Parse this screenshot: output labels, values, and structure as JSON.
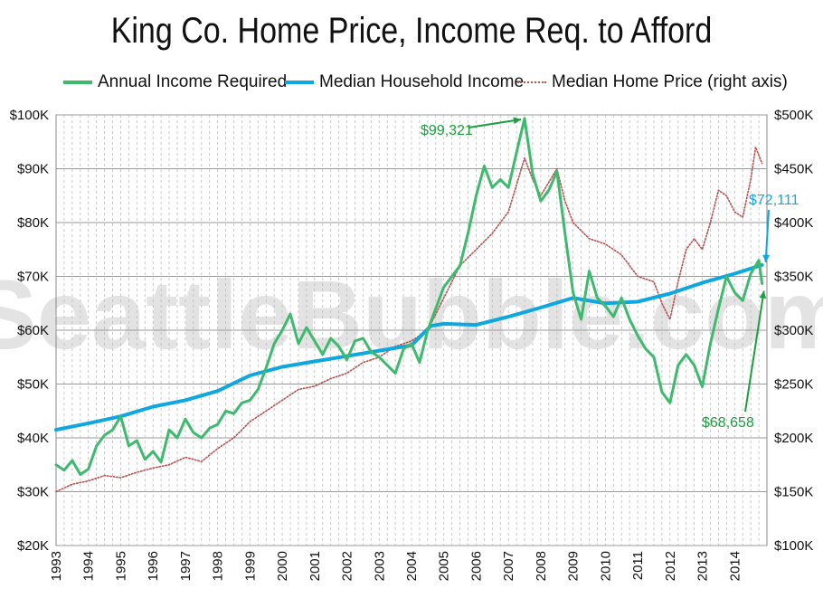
{
  "chart_data": {
    "type": "line",
    "title": "King Co. Home Price, Income Req. to Afford",
    "watermark": "SeattleBubble.com",
    "left_axis": {
      "ylim": [
        20000,
        100000
      ],
      "ticks": [
        "$20K",
        "$30K",
        "$40K",
        "$50K",
        "$60K",
        "$70K",
        "$80K",
        "$90K",
        "$100K"
      ]
    },
    "right_axis": {
      "ylim": [
        100000,
        500000
      ],
      "ticks": [
        "$100K",
        "$150K",
        "$200K",
        "$250K",
        "$300K",
        "$350K",
        "$400K",
        "$450K",
        "$500K"
      ]
    },
    "x_ticks": [
      "1993",
      "1994",
      "1995",
      "1996",
      "1997",
      "1998",
      "1999",
      "2000",
      "2001",
      "2002",
      "2003",
      "2004",
      "2005",
      "2006",
      "2007",
      "2008",
      "2009",
      "2010",
      "2011",
      "2012",
      "2013",
      "2014"
    ],
    "xlim": [
      1993.0,
      2015.0
    ],
    "grid": true,
    "legend_placement": "top",
    "colors": {
      "income_required": "#3dba6e",
      "median_income": "#0fa7e0",
      "home_price": "#b8514f"
    },
    "series": [
      {
        "name": "Annual Income Required",
        "axis": "left",
        "style": "solid",
        "points": [
          [
            1993.0,
            35000
          ],
          [
            1993.25,
            34000
          ],
          [
            1993.5,
            35800
          ],
          [
            1993.75,
            33200
          ],
          [
            1994.0,
            34200
          ],
          [
            1994.25,
            38500
          ],
          [
            1994.5,
            40500
          ],
          [
            1994.75,
            41500
          ],
          [
            1995.0,
            44000
          ],
          [
            1995.25,
            38500
          ],
          [
            1995.5,
            39500
          ],
          [
            1995.75,
            36000
          ],
          [
            1996.0,
            37500
          ],
          [
            1996.25,
            35500
          ],
          [
            1996.5,
            41500
          ],
          [
            1996.75,
            40000
          ],
          [
            1997.0,
            43500
          ],
          [
            1997.25,
            41000
          ],
          [
            1997.5,
            40000
          ],
          [
            1997.75,
            41800
          ],
          [
            1998.0,
            42500
          ],
          [
            1998.25,
            45000
          ],
          [
            1998.5,
            44500
          ],
          [
            1998.75,
            46500
          ],
          [
            1999.0,
            47000
          ],
          [
            1999.25,
            49000
          ],
          [
            1999.5,
            53000
          ],
          [
            1999.75,
            57500
          ],
          [
            2000.0,
            60000
          ],
          [
            2000.25,
            63000
          ],
          [
            2000.5,
            57500
          ],
          [
            2000.75,
            60500
          ],
          [
            2001.0,
            58000
          ],
          [
            2001.25,
            55500
          ],
          [
            2001.5,
            58500
          ],
          [
            2001.75,
            57000
          ],
          [
            2002.0,
            54500
          ],
          [
            2002.25,
            58000
          ],
          [
            2002.5,
            58500
          ],
          [
            2002.75,
            56000
          ],
          [
            2003.0,
            55000
          ],
          [
            2003.25,
            53500
          ],
          [
            2003.5,
            52000
          ],
          [
            2003.75,
            56500
          ],
          [
            2004.0,
            57500
          ],
          [
            2004.25,
            54000
          ],
          [
            2004.5,
            60000
          ],
          [
            2004.75,
            64000
          ],
          [
            2005.0,
            68000
          ],
          [
            2005.25,
            70000
          ],
          [
            2005.5,
            72000
          ],
          [
            2005.75,
            78000
          ],
          [
            2006.0,
            85000
          ],
          [
            2006.25,
            90500
          ],
          [
            2006.5,
            86500
          ],
          [
            2006.75,
            88000
          ],
          [
            2007.0,
            86500
          ],
          [
            2007.25,
            93000
          ],
          [
            2007.5,
            99321
          ],
          [
            2007.75,
            89000
          ],
          [
            2008.0,
            84000
          ],
          [
            2008.25,
            86000
          ],
          [
            2008.5,
            89500
          ],
          [
            2008.75,
            78000
          ],
          [
            2009.0,
            67000
          ],
          [
            2009.25,
            62000
          ],
          [
            2009.5,
            71000
          ],
          [
            2009.75,
            66000
          ],
          [
            2010.0,
            64500
          ],
          [
            2010.25,
            62500
          ],
          [
            2010.5,
            66000
          ],
          [
            2010.75,
            62000
          ],
          [
            2011.0,
            59000
          ],
          [
            2011.25,
            56500
          ],
          [
            2011.5,
            55000
          ],
          [
            2011.75,
            48500
          ],
          [
            2012.0,
            46500
          ],
          [
            2012.25,
            53500
          ],
          [
            2012.5,
            55500
          ],
          [
            2012.75,
            53500
          ],
          [
            2013.0,
            49500
          ],
          [
            2013.25,
            57500
          ],
          [
            2013.5,
            64000
          ],
          [
            2013.75,
            70000
          ],
          [
            2014.0,
            67000
          ],
          [
            2014.25,
            65500
          ],
          [
            2014.5,
            70500
          ],
          [
            2014.75,
            73000
          ],
          [
            2014.85,
            68658
          ]
        ]
      },
      {
        "name": "Median Household Income",
        "axis": "left",
        "style": "solid",
        "points": [
          [
            1993.0,
            41500
          ],
          [
            1994.0,
            42700
          ],
          [
            1995.0,
            44000
          ],
          [
            1996.0,
            45800
          ],
          [
            1997.0,
            47000
          ],
          [
            1998.0,
            48700
          ],
          [
            1999.0,
            51600
          ],
          [
            2000.0,
            53200
          ],
          [
            2001.0,
            54200
          ],
          [
            2002.0,
            55200
          ],
          [
            2003.0,
            56200
          ],
          [
            2004.0,
            57200
          ],
          [
            2004.6,
            60800
          ],
          [
            2005.0,
            61200
          ],
          [
            2006.0,
            61000
          ],
          [
            2007.0,
            62500
          ],
          [
            2008.0,
            64200
          ],
          [
            2009.0,
            66000
          ],
          [
            2010.0,
            65000
          ],
          [
            2011.0,
            65300
          ],
          [
            2012.0,
            66800
          ],
          [
            2013.0,
            68800
          ],
          [
            2014.0,
            70500
          ],
          [
            2014.85,
            72111
          ]
        ]
      },
      {
        "name": "Median Home Price (right axis)",
        "axis": "right",
        "style": "dotted",
        "points": [
          [
            1993.0,
            150000
          ],
          [
            1993.5,
            157000
          ],
          [
            1994.0,
            160000
          ],
          [
            1994.5,
            165000
          ],
          [
            1995.0,
            163000
          ],
          [
            1995.5,
            168000
          ],
          [
            1996.0,
            172000
          ],
          [
            1996.5,
            175000
          ],
          [
            1997.0,
            182000
          ],
          [
            1997.5,
            178000
          ],
          [
            1998.0,
            190000
          ],
          [
            1998.5,
            200000
          ],
          [
            1999.0,
            215000
          ],
          [
            1999.5,
            225000
          ],
          [
            2000.0,
            235000
          ],
          [
            2000.5,
            245000
          ],
          [
            2001.0,
            248000
          ],
          [
            2001.5,
            255000
          ],
          [
            2002.0,
            260000
          ],
          [
            2002.5,
            270000
          ],
          [
            2003.0,
            275000
          ],
          [
            2003.5,
            285000
          ],
          [
            2004.0,
            290000
          ],
          [
            2004.5,
            300000
          ],
          [
            2005.0,
            330000
          ],
          [
            2005.5,
            360000
          ],
          [
            2006.0,
            375000
          ],
          [
            2006.5,
            390000
          ],
          [
            2007.0,
            410000
          ],
          [
            2007.5,
            460000
          ],
          [
            2007.75,
            440000
          ],
          [
            2008.0,
            425000
          ],
          [
            2008.5,
            450000
          ],
          [
            2008.75,
            420000
          ],
          [
            2009.0,
            400000
          ],
          [
            2009.5,
            385000
          ],
          [
            2010.0,
            380000
          ],
          [
            2010.5,
            370000
          ],
          [
            2011.0,
            350000
          ],
          [
            2011.5,
            345000
          ],
          [
            2011.75,
            325000
          ],
          [
            2012.0,
            310000
          ],
          [
            2012.25,
            345000
          ],
          [
            2012.5,
            375000
          ],
          [
            2012.75,
            385000
          ],
          [
            2013.0,
            375000
          ],
          [
            2013.25,
            400000
          ],
          [
            2013.5,
            430000
          ],
          [
            2013.75,
            425000
          ],
          [
            2014.0,
            410000
          ],
          [
            2014.25,
            405000
          ],
          [
            2014.5,
            440000
          ],
          [
            2014.65,
            470000
          ],
          [
            2014.85,
            455000
          ]
        ]
      }
    ],
    "annotations": [
      {
        "text": "$99,321",
        "color": "#1a9f3e",
        "point": [
          2007.5,
          99321
        ]
      },
      {
        "text": "$72,111",
        "color": "#0fa7e0",
        "point": [
          2014.85,
          72111
        ]
      },
      {
        "text": "$68,658",
        "color": "#1a9f3e",
        "point": [
          2014.85,
          68658
        ]
      }
    ]
  }
}
